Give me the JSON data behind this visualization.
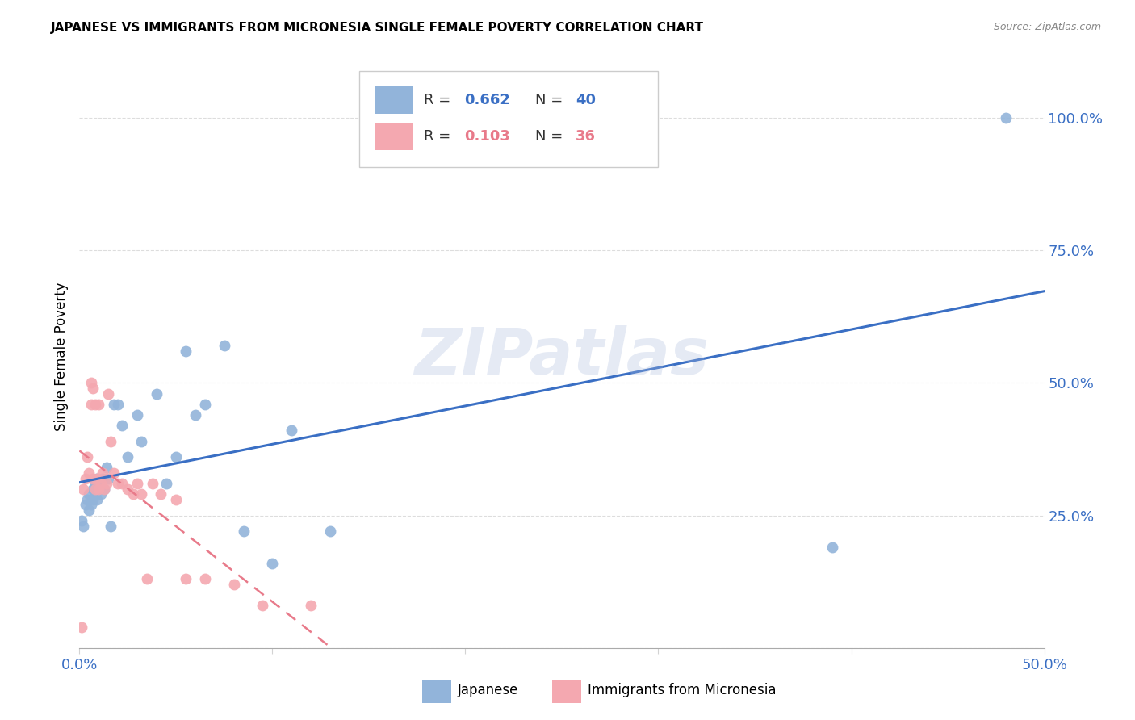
{
  "title": "JAPANESE VS IMMIGRANTS FROM MICRONESIA SINGLE FEMALE POVERTY CORRELATION CHART",
  "source": "Source: ZipAtlas.com",
  "ylabel": "Single Female Poverty",
  "watermark": "ZIPatlas",
  "legend1_label": "Japanese",
  "legend2_label": "Immigrants from Micronesia",
  "R1_text": "0.662",
  "N1_text": "40",
  "R2_text": "0.103",
  "N2_text": "36",
  "color_blue": "#92B4DA",
  "color_pink": "#F4A8B0",
  "color_line_blue": "#3A6FC4",
  "color_line_pink": "#E87A8A",
  "xlim": [
    0.0,
    0.5
  ],
  "ylim": [
    0.0,
    1.1
  ],
  "xtick_vals": [
    0.0,
    0.1,
    0.2,
    0.3,
    0.4,
    0.5
  ],
  "xtick_labels": [
    "0.0%",
    "",
    "",
    "",
    "",
    "50.0%"
  ],
  "ytick_vals": [
    0.0,
    0.25,
    0.5,
    0.75,
    1.0
  ],
  "ytick_labels": [
    "",
    "25.0%",
    "50.0%",
    "75.0%",
    "100.0%"
  ],
  "japanese_x": [
    0.001,
    0.002,
    0.003,
    0.004,
    0.005,
    0.005,
    0.006,
    0.007,
    0.007,
    0.008,
    0.008,
    0.009,
    0.009,
    0.01,
    0.01,
    0.011,
    0.012,
    0.013,
    0.014,
    0.015,
    0.016,
    0.018,
    0.02,
    0.022,
    0.025,
    0.03,
    0.032,
    0.04,
    0.045,
    0.05,
    0.055,
    0.06,
    0.065,
    0.075,
    0.085,
    0.1,
    0.11,
    0.13,
    0.39,
    0.48
  ],
  "japanese_y": [
    0.24,
    0.23,
    0.27,
    0.28,
    0.26,
    0.29,
    0.27,
    0.28,
    0.3,
    0.29,
    0.31,
    0.28,
    0.32,
    0.3,
    0.31,
    0.29,
    0.32,
    0.3,
    0.34,
    0.32,
    0.23,
    0.46,
    0.46,
    0.42,
    0.36,
    0.44,
    0.39,
    0.48,
    0.31,
    0.36,
    0.56,
    0.44,
    0.46,
    0.57,
    0.22,
    0.16,
    0.41,
    0.22,
    0.19,
    1.0
  ],
  "micronesia_x": [
    0.001,
    0.002,
    0.003,
    0.004,
    0.005,
    0.006,
    0.006,
    0.007,
    0.007,
    0.008,
    0.008,
    0.009,
    0.01,
    0.01,
    0.011,
    0.012,
    0.013,
    0.014,
    0.015,
    0.016,
    0.018,
    0.02,
    0.022,
    0.025,
    0.028,
    0.03,
    0.032,
    0.035,
    0.038,
    0.042,
    0.05,
    0.055,
    0.065,
    0.08,
    0.095,
    0.12
  ],
  "micronesia_y": [
    0.04,
    0.3,
    0.32,
    0.36,
    0.33,
    0.46,
    0.5,
    0.49,
    0.32,
    0.46,
    0.3,
    0.32,
    0.46,
    0.3,
    0.31,
    0.33,
    0.3,
    0.31,
    0.48,
    0.39,
    0.33,
    0.31,
    0.31,
    0.3,
    0.29,
    0.31,
    0.29,
    0.13,
    0.31,
    0.29,
    0.28,
    0.13,
    0.13,
    0.12,
    0.08,
    0.08
  ]
}
